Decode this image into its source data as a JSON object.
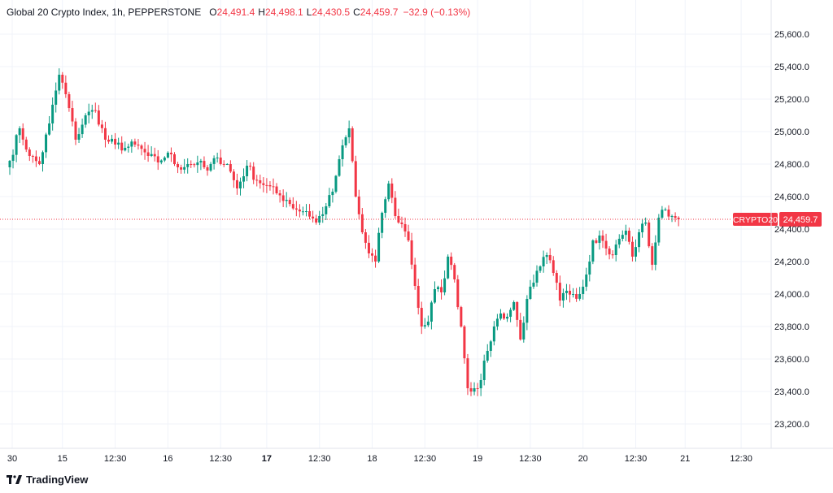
{
  "header": {
    "symbol_title": "Global 20 Crypto Index, 1h, PEPPERSTONE",
    "open_key": "O",
    "open_value": "24,491.4",
    "high_key": "H",
    "high_value": "24,498.1",
    "low_key": "L",
    "low_value": "24,430.5",
    "close_key": "C",
    "close_value": "24,459.7",
    "change": "−32.9 (−0.13%)"
  },
  "brand": {
    "name": "TradingView"
  },
  "colors": {
    "up": "#089981",
    "down": "#f23645",
    "grid": "#f0f3fa",
    "last_price": "#f23645"
  },
  "chart_data": {
    "type": "candlestick",
    "title": "Global 20 Crypto Index, 1h, PEPPERSTONE",
    "ylim": [
      23100,
      25800
    ],
    "y_ticks": [
      25600,
      25400,
      25200,
      25000,
      24800,
      24600,
      24400,
      24200,
      24000,
      23800,
      23600,
      23400,
      23200
    ],
    "y_tick_labels": [
      "25,600.0",
      "25,400.0",
      "25,200.0",
      "25,000.0",
      "24,800.0",
      "24,600.0",
      "24,400.0",
      "24,200.0",
      "24,000.0",
      "23,800.0",
      "23,600.0",
      "23,400.0",
      "23,200.0"
    ],
    "x_ticks": [
      {
        "label": "30",
        "index": 0,
        "bold": false
      },
      {
        "label": "15",
        "index": 16,
        "bold": false
      },
      {
        "label": "12:30",
        "index": 32,
        "bold": false
      },
      {
        "label": "16",
        "index": 48,
        "bold": false
      },
      {
        "label": "12:30",
        "index": 64,
        "bold": false
      },
      {
        "label": "17",
        "index": 78,
        "bold": true
      },
      {
        "label": "12:30",
        "index": 94,
        "bold": false
      },
      {
        "label": "18",
        "index": 110,
        "bold": false
      },
      {
        "label": "12:30",
        "index": 126,
        "bold": false
      },
      {
        "label": "19",
        "index": 142,
        "bold": false
      },
      {
        "label": "12:30",
        "index": 158,
        "bold": false
      },
      {
        "label": "20",
        "index": 174,
        "bold": false
      },
      {
        "label": "12:30",
        "index": 190,
        "bold": false
      },
      {
        "label": "21",
        "index": 205,
        "bold": false
      },
      {
        "label": "12:30",
        "index": 222,
        "bold": false
      }
    ],
    "anchors": [
      [
        0,
        24820
      ],
      [
        3,
        25020
      ],
      [
        6,
        24850
      ],
      [
        9,
        24800
      ],
      [
        12,
        25050
      ],
      [
        15,
        25350
      ],
      [
        17,
        25230
      ],
      [
        20,
        24950
      ],
      [
        23,
        25100
      ],
      [
        26,
        25130
      ],
      [
        29,
        24950
      ],
      [
        32,
        24920
      ],
      [
        35,
        24900
      ],
      [
        38,
        24920
      ],
      [
        42,
        24850
      ],
      [
        45,
        24810
      ],
      [
        48,
        24870
      ],
      [
        51,
        24780
      ],
      [
        54,
        24800
      ],
      [
        57,
        24810
      ],
      [
        60,
        24760
      ],
      [
        63,
        24840
      ],
      [
        66,
        24800
      ],
      [
        69,
        24650
      ],
      [
        72,
        24790
      ],
      [
        75,
        24700
      ],
      [
        78,
        24670
      ],
      [
        81,
        24620
      ],
      [
        84,
        24580
      ],
      [
        87,
        24520
      ],
      [
        90,
        24510
      ],
      [
        93,
        24440
      ],
      [
        96,
        24540
      ],
      [
        98,
        24630
      ],
      [
        100,
        24830
      ],
      [
        103,
        25020
      ],
      [
        105,
        24600
      ],
      [
        107,
        24380
      ],
      [
        109,
        24250
      ],
      [
        111,
        24200
      ],
      [
        113,
        24500
      ],
      [
        115,
        24680
      ],
      [
        117,
        24480
      ],
      [
        119,
        24430
      ],
      [
        121,
        24330
      ],
      [
        123,
        24050
      ],
      [
        125,
        23800
      ],
      [
        127,
        23830
      ],
      [
        129,
        24030
      ],
      [
        131,
        24010
      ],
      [
        133,
        24230
      ],
      [
        135,
        24090
      ],
      [
        137,
        23800
      ],
      [
        139,
        23420
      ],
      [
        141,
        23420
      ],
      [
        143,
        23470
      ],
      [
        145,
        23650
      ],
      [
        147,
        23800
      ],
      [
        149,
        23880
      ],
      [
        151,
        23860
      ],
      [
        153,
        23950
      ],
      [
        155,
        23720
      ],
      [
        157,
        23970
      ],
      [
        159,
        24070
      ],
      [
        161,
        24170
      ],
      [
        163,
        24240
      ],
      [
        165,
        24130
      ],
      [
        167,
        23960
      ],
      [
        169,
        24020
      ],
      [
        171,
        24000
      ],
      [
        173,
        24000
      ],
      [
        175,
        24120
      ],
      [
        177,
        24330
      ],
      [
        179,
        24360
      ],
      [
        181,
        24280
      ],
      [
        183,
        24240
      ],
      [
        185,
        24340
      ],
      [
        187,
        24390
      ],
      [
        189,
        24230
      ],
      [
        191,
        24380
      ],
      [
        193,
        24440
      ],
      [
        195,
        24180
      ],
      [
        197,
        24470
      ],
      [
        199,
        24520
      ],
      [
        201,
        24480
      ],
      [
        203,
        24460
      ]
    ],
    "last_price": 24459.7,
    "last_price_label": "24,459.7",
    "last_price_tag": "CRYPTO20",
    "candle_count": 204
  }
}
